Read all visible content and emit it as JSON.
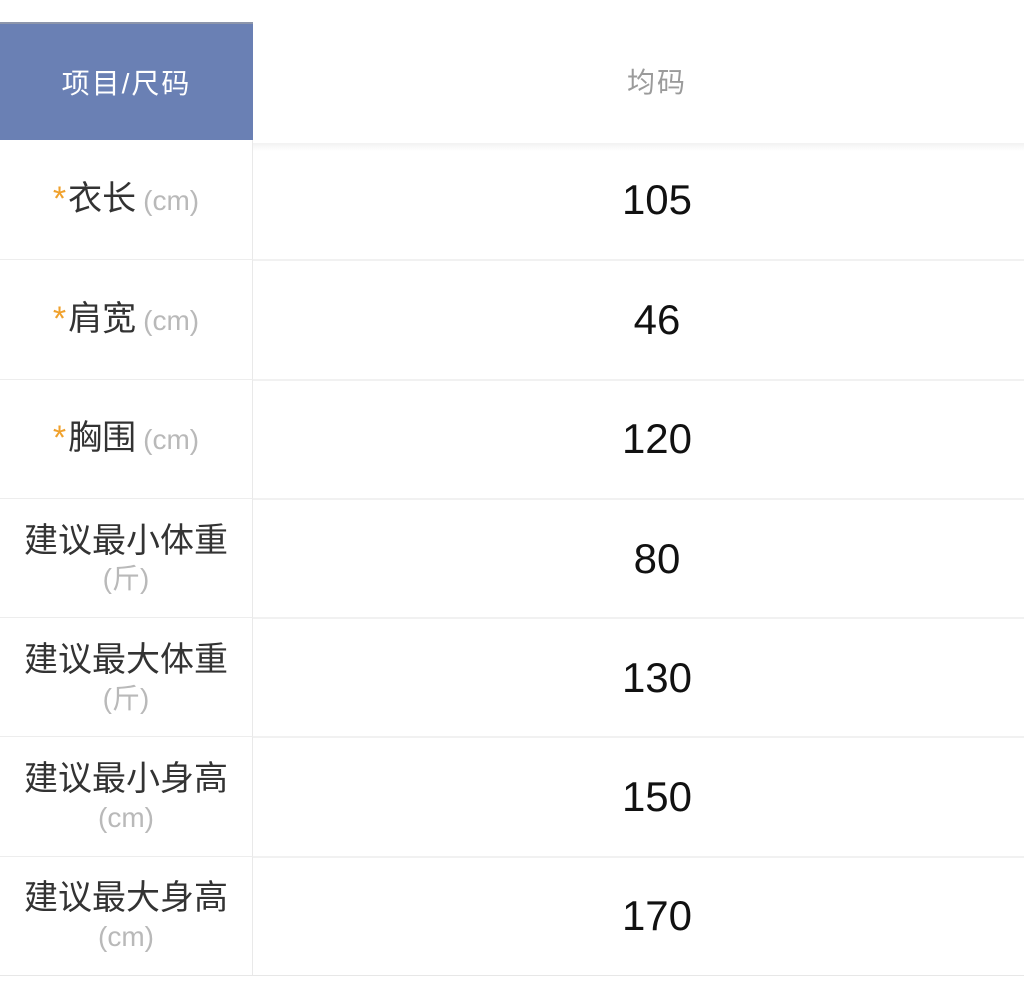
{
  "table": {
    "corner_header": "项目/尺码",
    "size_column_header": "均码",
    "required_mark": "*",
    "rows": [
      {
        "label": "衣长",
        "unit": "(cm)",
        "value": "105",
        "required": true
      },
      {
        "label": "肩宽",
        "unit": "(cm)",
        "value": "46",
        "required": true
      },
      {
        "label": "胸围",
        "unit": "(cm)",
        "value": "120",
        "required": true
      },
      {
        "label": "建议最小体重",
        "unit": "(斤)",
        "value": "80",
        "required": false
      },
      {
        "label": "建议最大体重",
        "unit": "(斤)",
        "value": "130",
        "required": false
      },
      {
        "label": "建议最小身高",
        "unit": "(cm)",
        "value": "150",
        "required": false
      },
      {
        "label": "建议最大身高",
        "unit": "(cm)",
        "value": "170",
        "required": false
      }
    ]
  },
  "colors": {
    "header_bg": "#6a80b4",
    "header_text": "#ffffff",
    "size_header_text": "#9b9b9b",
    "label_text": "#333333",
    "unit_text": "#b9b9b9",
    "value_text": "#111111",
    "required_mark": "#f0a12c",
    "divider": "#e9e9e9"
  }
}
